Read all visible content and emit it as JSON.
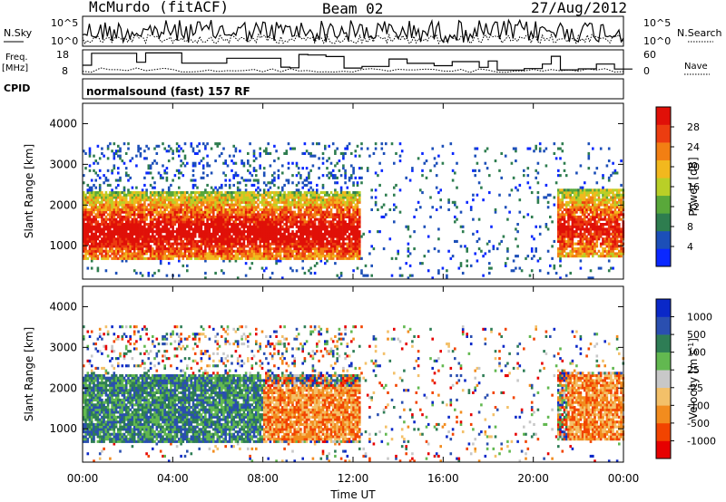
{
  "header": {
    "station": "McMurdo (fitACF)",
    "beam": "Beam 02",
    "date": "27/Aug/2012"
  },
  "strip1": {
    "left_label": "N.Sky",
    "right_label": "N.Search",
    "left_ticks": [
      "10^5",
      "10^0"
    ],
    "right_ticks": [
      "10^5",
      "10^0"
    ]
  },
  "strip2": {
    "left_label_1": "Freq.",
    "left_label_2": "[MHz]",
    "right_label": "Nave",
    "left_ticks": [
      "18",
      "8"
    ],
    "right_ticks": [
      "60",
      "0"
    ]
  },
  "cpid": {
    "label": "CPID",
    "text": "normalsound (fast) 157 RF"
  },
  "colors": {
    "power_scale": [
      "#0a28ff",
      "#1c4fb8",
      "#2e7d4f",
      "#59a83a",
      "#b9cf27",
      "#f2b81e",
      "#f27f13",
      "#ec3d10",
      "#e01008"
    ],
    "velocity_scale": [
      "#e60000",
      "#f24400",
      "#f28c1e",
      "#f3c069",
      "#c8c8c8",
      "#62b850",
      "#2e7d55",
      "#2a4fb0",
      "#0a28c8"
    ]
  },
  "chart_data": [
    {
      "type": "heatmap",
      "title": "Power",
      "ylabel": "Slant Range [km]",
      "xlabel": "",
      "x_range_hours": [
        0,
        24
      ],
      "ylim": [
        180,
        4500
      ],
      "y_ticks": [
        1000,
        2000,
        3000,
        4000
      ],
      "colorbar": {
        "label": "Power [dB]",
        "ticks": [
          4,
          8,
          12,
          16,
          20,
          24,
          28
        ],
        "range": [
          0,
          30
        ]
      },
      "features": [
        {
          "x_hours": [
            0.0,
            12.3
          ],
          "range_km": [
            600,
            2300
          ],
          "level_db": "10-28",
          "note": "main echo band"
        },
        {
          "x_hours": [
            0.0,
            12.3
          ],
          "range_km": [
            2300,
            3500
          ],
          "level_db": "2-8",
          "note": "scattered weak echoes"
        },
        {
          "x_hours": [
            12.3,
            21.0
          ],
          "range_km": [
            200,
            3500
          ],
          "level_db": "2-10",
          "note": "sparse scatter"
        },
        {
          "x_hours": [
            21.0,
            24.0
          ],
          "range_km": [
            700,
            2400
          ],
          "level_db": "8-28",
          "note": "late echo band"
        }
      ]
    },
    {
      "type": "heatmap",
      "title": "Velocity",
      "ylabel": "Slant Range [km]",
      "xlabel": "Time UT",
      "x_range_hours": [
        0,
        24
      ],
      "x_ticks": [
        "00:00",
        "04:00",
        "08:00",
        "12:00",
        "16:00",
        "20:00",
        "00:00"
      ],
      "ylim": [
        180,
        4500
      ],
      "y_ticks": [
        1000,
        2000,
        3000,
        4000
      ],
      "colorbar": {
        "label": "Velocity [m s^-1]",
        "ticks": [
          1000,
          500,
          100,
          25,
          -25,
          -100,
          -500,
          -1000
        ]
      },
      "features": [
        {
          "x_hours": [
            0.0,
            8.0
          ],
          "range_km": [
            600,
            2300
          ],
          "velocity": "positive, 100 to 500",
          "note": "green/blue band"
        },
        {
          "x_hours": [
            8.0,
            12.3
          ],
          "range_km": [
            700,
            2000
          ],
          "velocity": "negative, -100 to -500",
          "note": "orange band"
        },
        {
          "x_hours": [
            19.5,
            21.0
          ],
          "range_km": [
            900,
            1400
          ],
          "velocity": "positive, 25 to 100"
        },
        {
          "x_hours": [
            21.5,
            24.0
          ],
          "range_km": [
            600,
            2300
          ],
          "velocity": "negative, -100 to -500"
        }
      ]
    }
  ]
}
